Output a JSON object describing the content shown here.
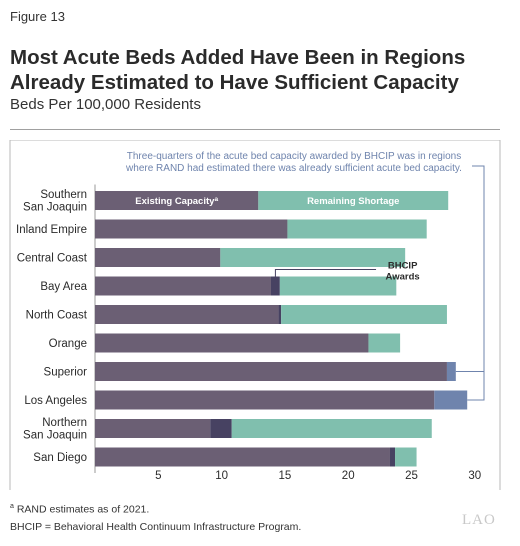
{
  "figure_label": "Figure 13",
  "title_line1": "Most Acute Beds Added Have Been in Regions",
  "title_line2": "Already Estimated to Have Sufficient Capacity",
  "subtitle": "Beds Per 100,000 Residents",
  "footnote_marker": "a",
  "footnote1": "RAND estimates as of 2021.",
  "footnote2": "BHCIP = Behavioral Health Continuum Infrastructure Program.",
  "logo": "LAO",
  "chart_data": {
    "type": "bar",
    "orientation": "horizontal",
    "stacked": true,
    "categories": [
      [
        "Southern",
        "San Joaquin"
      ],
      [
        "Inland Empire"
      ],
      [
        "Central Coast"
      ],
      [
        "Bay Area"
      ],
      [
        "North Coast"
      ],
      [
        "Orange"
      ],
      [
        "Superior"
      ],
      [
        "Los Angeles"
      ],
      [
        "Northern",
        "San Joaquin"
      ],
      [
        "San Diego"
      ]
    ],
    "series": [
      {
        "name": "Existing Capacity",
        "color": "#6b5f74",
        "values": [
          12.9,
          15.2,
          9.9,
          13.9,
          14.5,
          21.6,
          27.8,
          26.8,
          9.1,
          23.3
        ]
      },
      {
        "name": "BHCIP Awards",
        "color": "#474262",
        "values": [
          0,
          0,
          0,
          0.7,
          0.2,
          0,
          0,
          0,
          1.7,
          0.4
        ]
      },
      {
        "name": "BHCIP Awards",
        "color": "#6f84ad",
        "values": [
          0,
          0,
          0,
          0,
          0,
          0,
          0.7,
          2.6,
          0,
          0
        ]
      },
      {
        "name": "Remaining Shortage",
        "color": "#80bfae",
        "values": [
          15.0,
          11.0,
          14.6,
          9.2,
          13.1,
          2.5,
          0,
          0,
          15.8,
          1.7
        ]
      }
    ],
    "in_bar_labels": {
      "existing": "Existing Capacity",
      "existing_marker": "a",
      "shortage": "Remaining Shortage"
    },
    "bhcip_label_line1": "BHCIP",
    "bhcip_label_line2": "Awards",
    "annotation_line1": "Three-quarters of the acute bed capacity awarded by BHCIP was in regions",
    "annotation_line2": "where RAND had estimated there was already sufficient acute bed capacity.",
    "annotation_color": "#6f84ad",
    "x_ticks": [
      5,
      10,
      15,
      20,
      25,
      30
    ],
    "xlim": [
      0,
      31
    ],
    "grid": false,
    "legend": "none"
  }
}
